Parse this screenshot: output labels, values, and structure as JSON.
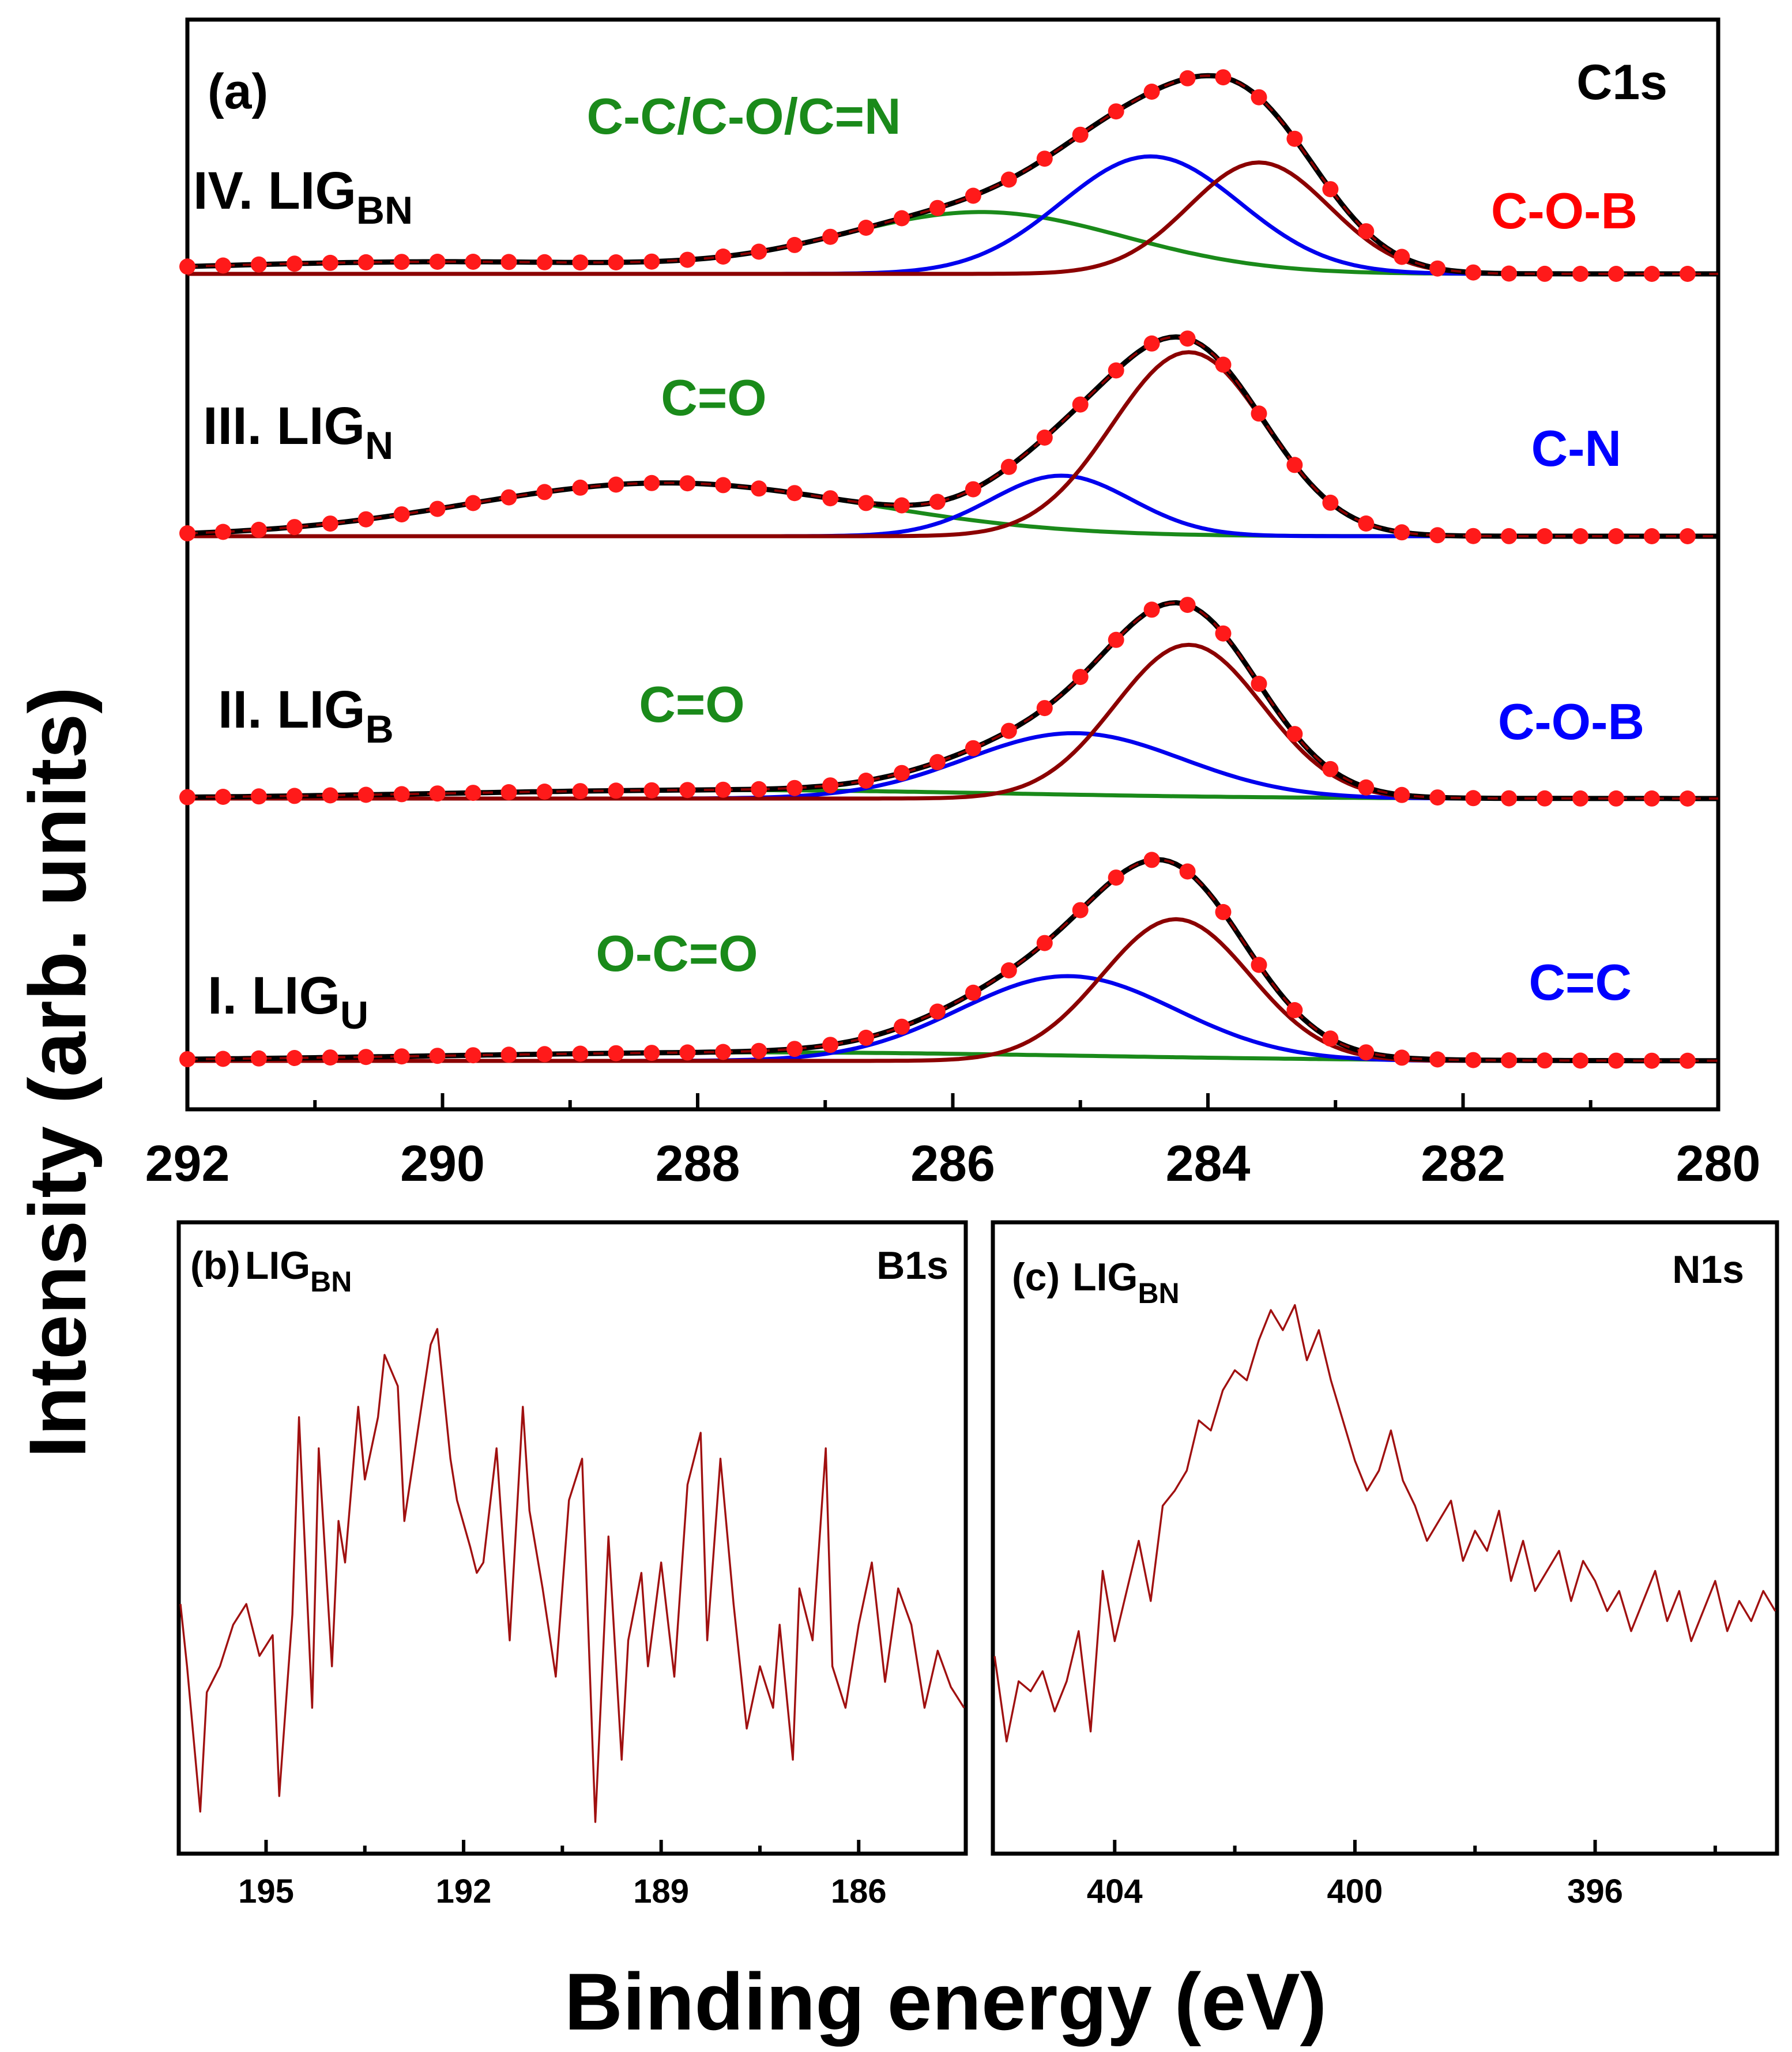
{
  "figure": {
    "y_axis_title": "Intensity (arb. units)",
    "x_axis_title": "Binding energy (eV)"
  },
  "colors": {
    "comp1": "#8b0000",
    "comp2": "#0000ee",
    "comp3": "#1a8a1a",
    "data_points": "#ff1a1a",
    "fit_dash": "#8b0000",
    "noisy_line": "#a01010",
    "label_red": "#ff0000",
    "label_blue": "#0000ff",
    "label_green": "#1a8a1a"
  },
  "chart_data": [
    {
      "id": "a",
      "type": "line",
      "panel_tag": "(a)",
      "core_level": "C1s",
      "xlim": [
        292,
        280
      ],
      "xticks": [
        "292",
        "290",
        "288",
        "286",
        "284",
        "282",
        "280"
      ],
      "xtick_values": [
        292,
        290,
        288,
        286,
        284,
        282,
        280
      ],
      "x_minor_ticks": [
        291,
        289,
        287,
        285,
        283,
        281
      ],
      "x_sample_step": 0.28,
      "stacked_spectra": [
        {
          "name": "IV. LIG",
          "subscript": "BN",
          "baseline_offset": 3.0,
          "peaks": [
            {
              "center": 283.6,
              "height": 0.92,
              "width": 0.55,
              "color_key": "comp1",
              "label": "C-O-B",
              "label_color": "label_red"
            },
            {
              "center": 284.45,
              "height": 0.97,
              "width": 0.7,
              "color_key": "comp2",
              "label": "",
              "label_color": ""
            },
            {
              "center": 285.75,
              "height": 0.5,
              "width": 1.1,
              "color_key": "comp3",
              "label": "C-C/C-O/C=N",
              "label_color": "label_green"
            }
          ],
          "tail": {
            "center": 290.0,
            "height": 0.1,
            "width": 2.0
          }
        },
        {
          "name": "III. LIG",
          "subscript": "N",
          "baseline_offset": 2.0,
          "peaks": [
            {
              "center": 284.15,
              "height": 1.52,
              "width": 0.6,
              "color_key": "comp1",
              "label": "",
              "label_color": ""
            },
            {
              "center": 285.15,
              "height": 0.5,
              "width": 0.55,
              "color_key": "comp2",
              "label": "C-N",
              "label_color": "label_blue"
            },
            {
              "center": 288.25,
              "height": 0.44,
              "width": 1.55,
              "color_key": "comp3",
              "label": "C=O",
              "label_color": "label_green"
            }
          ],
          "tail": null
        },
        {
          "name": "II. LIG",
          "subscript": "B",
          "baseline_offset": 1.0,
          "peaks": [
            {
              "center": 284.15,
              "height": 1.27,
              "width": 0.58,
              "color_key": "comp1",
              "label": "",
              "label_color": ""
            },
            {
              "center": 285.05,
              "height": 0.54,
              "width": 0.85,
              "color_key": "comp2",
              "label": "C-O-B",
              "label_color": "label_blue"
            },
            {
              "center": 287.8,
              "height": 0.07,
              "width": 2.2,
              "color_key": "comp3",
              "label": "C=O",
              "label_color": "label_green"
            }
          ],
          "tail": null
        },
        {
          "name": "I. LIG",
          "subscript": "U",
          "baseline_offset": 0.0,
          "peaks": [
            {
              "center": 284.25,
              "height": 1.17,
              "width": 0.58,
              "color_key": "comp1",
              "label": "",
              "label_color": ""
            },
            {
              "center": 285.1,
              "height": 0.7,
              "width": 0.85,
              "color_key": "comp2",
              "label": "C=C",
              "label_color": "label_blue"
            },
            {
              "center": 287.5,
              "height": 0.07,
              "width": 2.5,
              "color_key": "comp3",
              "label": "O-C=O",
              "label_color": "label_green"
            }
          ],
          "tail": null
        }
      ]
    },
    {
      "id": "b",
      "type": "line",
      "panel_tag": "(b)",
      "sample": "LIG",
      "subscript": "BN",
      "core_level": "B1s",
      "xlim": [
        196.3,
        184.4
      ],
      "xticks": [
        "195",
        "192",
        "189",
        "186"
      ],
      "xtick_values": [
        195,
        192,
        189,
        186
      ],
      "x_minor_ticks": [
        193.5,
        190.5,
        187.5
      ],
      "x": [
        196.3,
        196.2,
        196.0,
        195.9,
        195.7,
        195.5,
        195.3,
        195.1,
        194.9,
        194.8,
        194.6,
        194.5,
        194.3,
        194.2,
        194.0,
        193.9,
        193.8,
        193.6,
        193.5,
        193.3,
        193.2,
        193.0,
        192.9,
        192.7,
        192.5,
        192.4,
        192.2,
        192.1,
        191.9,
        191.8,
        191.7,
        191.5,
        191.3,
        191.1,
        191.0,
        190.8,
        190.6,
        190.4,
        190.2,
        190.0,
        189.8,
        189.6,
        189.5,
        189.3,
        189.2,
        189.0,
        188.8,
        188.6,
        188.4,
        188.3,
        188.1,
        187.9,
        187.7,
        187.5,
        187.3,
        187.2,
        187.0,
        186.9,
        186.7,
        186.5,
        186.4,
        186.2,
        186.0,
        185.8,
        185.6,
        185.4,
        185.2,
        185.0,
        184.8,
        184.6,
        184.4
      ],
      "y": [
        0.42,
        0.3,
        0.02,
        0.25,
        0.3,
        0.38,
        0.42,
        0.32,
        0.36,
        0.05,
        0.4,
        0.78,
        0.22,
        0.72,
        0.3,
        0.58,
        0.5,
        0.8,
        0.66,
        0.78,
        0.9,
        0.84,
        0.58,
        0.75,
        0.92,
        0.95,
        0.7,
        0.62,
        0.53,
        0.48,
        0.5,
        0.72,
        0.35,
        0.8,
        0.6,
        0.45,
        0.28,
        0.62,
        0.7,
        0.0,
        0.55,
        0.12,
        0.35,
        0.48,
        0.3,
        0.5,
        0.28,
        0.65,
        0.75,
        0.35,
        0.7,
        0.42,
        0.18,
        0.3,
        0.22,
        0.38,
        0.12,
        0.45,
        0.35,
        0.72,
        0.3,
        0.22,
        0.38,
        0.5,
        0.27,
        0.45,
        0.38,
        0.22,
        0.33,
        0.26,
        0.22
      ]
    },
    {
      "id": "c",
      "type": "line",
      "panel_tag": "(c)",
      "sample": "LIG",
      "subscript": "BN",
      "core_level": "N1s",
      "xlim": [
        406.0,
        393.0
      ],
      "xticks": [
        "404",
        "400",
        "396"
      ],
      "xtick_values": [
        404,
        400,
        396
      ],
      "x_minor_ticks": [
        402,
        398,
        394
      ],
      "x": [
        406.0,
        405.8,
        405.6,
        405.4,
        405.2,
        405.0,
        404.8,
        404.6,
        404.4,
        404.2,
        404.0,
        403.8,
        403.6,
        403.4,
        403.2,
        403.0,
        402.8,
        402.6,
        402.4,
        402.2,
        402.0,
        401.8,
        401.6,
        401.4,
        401.2,
        401.0,
        400.8,
        400.6,
        400.4,
        400.2,
        400.0,
        399.8,
        399.6,
        399.4,
        399.2,
        399.0,
        398.8,
        398.6,
        398.4,
        398.2,
        398.0,
        397.8,
        397.6,
        397.4,
        397.2,
        397.0,
        396.8,
        396.6,
        396.4,
        396.2,
        396.0,
        395.8,
        395.6,
        395.4,
        395.2,
        395.0,
        394.8,
        394.6,
        394.4,
        394.2,
        394.0,
        393.8,
        393.6,
        393.4,
        393.2,
        393.0
      ],
      "y": [
        0.25,
        0.08,
        0.2,
        0.18,
        0.22,
        0.14,
        0.2,
        0.3,
        0.1,
        0.42,
        0.28,
        0.38,
        0.48,
        0.36,
        0.55,
        0.58,
        0.62,
        0.72,
        0.7,
        0.78,
        0.82,
        0.8,
        0.88,
        0.94,
        0.9,
        0.95,
        0.84,
        0.9,
        0.8,
        0.72,
        0.64,
        0.58,
        0.62,
        0.7,
        0.6,
        0.55,
        0.48,
        0.52,
        0.56,
        0.44,
        0.5,
        0.46,
        0.54,
        0.4,
        0.48,
        0.38,
        0.42,
        0.46,
        0.36,
        0.44,
        0.4,
        0.34,
        0.38,
        0.3,
        0.36,
        0.42,
        0.32,
        0.38,
        0.28,
        0.34,
        0.4,
        0.3,
        0.36,
        0.32,
        0.38,
        0.34
      ]
    }
  ]
}
